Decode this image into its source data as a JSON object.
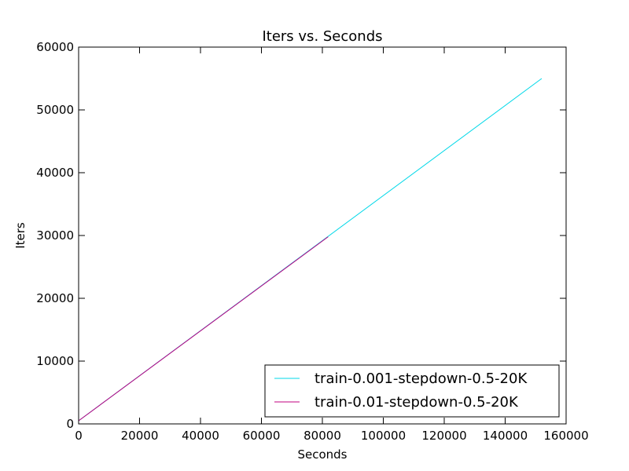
{
  "chart_data": {
    "type": "line",
    "title": "Iters vs. Seconds",
    "xlabel": "Seconds",
    "ylabel": "Iters",
    "xlim": [
      0,
      160000
    ],
    "ylim": [
      0,
      60000
    ],
    "xticks": [
      0,
      20000,
      40000,
      60000,
      80000,
      100000,
      120000,
      140000,
      160000
    ],
    "yticks": [
      0,
      10000,
      20000,
      30000,
      40000,
      50000,
      60000
    ],
    "xtick_labels": [
      "0",
      "20000",
      "40000",
      "60000",
      "80000",
      "100000",
      "120000",
      "140000",
      "160000"
    ],
    "ytick_labels": [
      "0",
      "10000",
      "20000",
      "30000",
      "40000",
      "50000",
      "60000"
    ],
    "grid": false,
    "legend_position": "lower-right",
    "series": [
      {
        "name": "train-0.001-stepdown-0.5-20K",
        "color": "#00d8e8",
        "x": [
          0,
          152000
        ],
        "y": [
          500,
          55000
        ]
      },
      {
        "name": "train-0.01-stepdown-0.5-20K",
        "color": "#c0007f",
        "x": [
          0,
          81900
        ],
        "y": [
          500,
          29800
        ]
      }
    ]
  }
}
